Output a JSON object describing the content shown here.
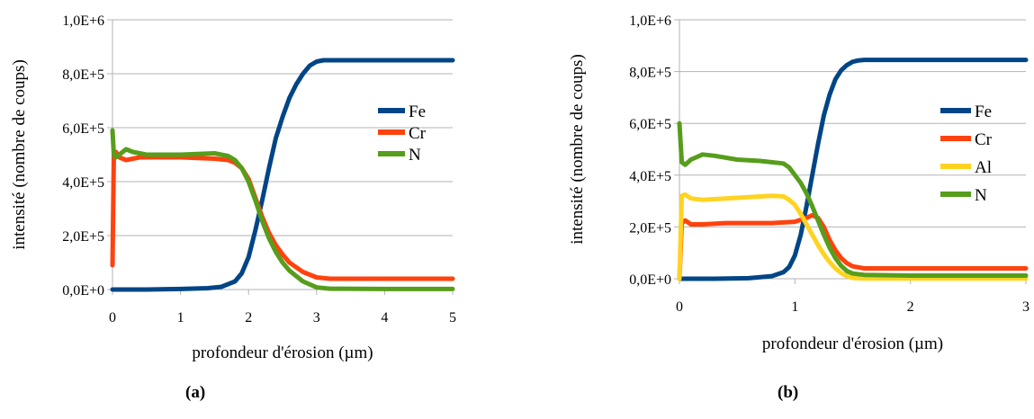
{
  "chart_data": [
    {
      "id": "a",
      "type": "line",
      "caption": "(a)",
      "xlabel": "profondeur d'érosion (µm)",
      "ylabel": "intensité (nombre de coups)",
      "xlim": [
        0,
        5
      ],
      "ylim": [
        0,
        1000000
      ],
      "xticks": [
        0,
        1,
        2,
        3,
        4,
        5
      ],
      "xtick_labels": [
        "0",
        "1",
        "2",
        "3",
        "4",
        "5"
      ],
      "yticks": [
        0,
        200000,
        400000,
        600000,
        800000,
        1000000
      ],
      "ytick_labels": [
        "0,0E+0",
        "2,0E+5",
        "4,0E+5",
        "6,0E+5",
        "8,0E+5",
        "1,0E+6"
      ],
      "grid": "horizontal",
      "legend_position": "right",
      "series": [
        {
          "name": "Fe",
          "color": "#004586",
          "x": [
            0,
            0.5,
            1.0,
            1.4,
            1.6,
            1.8,
            1.9,
            2.0,
            2.1,
            2.2,
            2.3,
            2.4,
            2.5,
            2.6,
            2.7,
            2.8,
            2.9,
            3.0,
            3.1,
            3.3,
            4.0,
            5.0
          ],
          "y": [
            0,
            0,
            2000,
            5000,
            10000,
            30000,
            60000,
            120000,
            220000,
            330000,
            450000,
            560000,
            640000,
            710000,
            760000,
            800000,
            830000,
            845000,
            850000,
            850000,
            850000,
            850000
          ]
        },
        {
          "name": "Cr",
          "color": "#ff420e",
          "x": [
            0,
            0.02,
            0.05,
            0.1,
            0.2,
            0.4,
            1.0,
            1.5,
            1.7,
            1.8,
            1.9,
            2.0,
            2.1,
            2.2,
            2.3,
            2.4,
            2.5,
            2.6,
            2.8,
            3.0,
            3.2,
            4.0,
            5.0
          ],
          "y": [
            90000,
            500000,
            510000,
            490000,
            480000,
            490000,
            490000,
            485000,
            480000,
            470000,
            450000,
            410000,
            340000,
            270000,
            210000,
            165000,
            130000,
            100000,
            65000,
            45000,
            40000,
            40000,
            40000
          ]
        },
        {
          "name": "N",
          "color": "#579d1c",
          "x": [
            0,
            0.02,
            0.05,
            0.1,
            0.2,
            0.3,
            0.5,
            1.0,
            1.5,
            1.7,
            1.8,
            1.9,
            2.0,
            2.1,
            2.2,
            2.3,
            2.4,
            2.5,
            2.6,
            2.8,
            3.0,
            3.2,
            4.0,
            5.0
          ],
          "y": [
            590000,
            500000,
            490000,
            500000,
            520000,
            510000,
            500000,
            500000,
            505000,
            495000,
            480000,
            450000,
            400000,
            330000,
            255000,
            190000,
            140000,
            100000,
            70000,
            30000,
            8000,
            3000,
            2000,
            2000
          ]
        }
      ]
    },
    {
      "id": "b",
      "type": "line",
      "caption": "(b)",
      "xlabel": "profondeur d'érosion (µm)",
      "ylabel": "intensité (nombre de coups)",
      "xlim": [
        0,
        3
      ],
      "ylim": [
        0,
        1000000
      ],
      "xticks": [
        0,
        1,
        2,
        3
      ],
      "xtick_labels": [
        "0",
        "1",
        "2",
        "3"
      ],
      "yticks": [
        0,
        200000,
        400000,
        600000,
        800000,
        1000000
      ],
      "ytick_labels": [
        "0,0E+0",
        "2,0E+5",
        "4,0E+5",
        "6,0E+5",
        "8,0E+5",
        "1,0E+6"
      ],
      "grid": "horizontal",
      "legend_position": "right",
      "series": [
        {
          "name": "Fe",
          "color": "#004586",
          "x": [
            0,
            0.3,
            0.6,
            0.8,
            0.9,
            0.95,
            1.0,
            1.05,
            1.1,
            1.15,
            1.2,
            1.25,
            1.3,
            1.35,
            1.4,
            1.45,
            1.5,
            1.55,
            1.6,
            1.7,
            2.0,
            3.0
          ],
          "y": [
            0,
            0,
            2000,
            10000,
            25000,
            45000,
            90000,
            170000,
            280000,
            400000,
            520000,
            630000,
            710000,
            770000,
            805000,
            825000,
            838000,
            843000,
            845000,
            845000,
            845000,
            845000
          ]
        },
        {
          "name": "Cr",
          "color": "#ff420e",
          "x": [
            0,
            0.02,
            0.05,
            0.1,
            0.2,
            0.4,
            0.6,
            0.8,
            1.0,
            1.1,
            1.15,
            1.2,
            1.25,
            1.3,
            1.35,
            1.4,
            1.45,
            1.5,
            1.6,
            1.8,
            2.0,
            3.0
          ],
          "y": [
            0,
            215000,
            225000,
            210000,
            210000,
            215000,
            215000,
            215000,
            220000,
            235000,
            245000,
            235000,
            200000,
            150000,
            110000,
            80000,
            60000,
            48000,
            40000,
            40000,
            40000,
            40000
          ]
        },
        {
          "name": "Al",
          "color": "#ffd320",
          "x": [
            0,
            0.02,
            0.05,
            0.1,
            0.2,
            0.4,
            0.6,
            0.8,
            0.9,
            0.95,
            1.0,
            1.05,
            1.1,
            1.15,
            1.2,
            1.25,
            1.3,
            1.35,
            1.4,
            1.45,
            1.5,
            1.6,
            2.0,
            3.0
          ],
          "y": [
            0,
            320000,
            325000,
            310000,
            305000,
            310000,
            315000,
            320000,
            318000,
            305000,
            285000,
            250000,
            210000,
            170000,
            130000,
            95000,
            65000,
            40000,
            22000,
            10000,
            3000,
            1000,
            1000,
            1000
          ]
        },
        {
          "name": "N",
          "color": "#579d1c",
          "x": [
            0,
            0.02,
            0.05,
            0.1,
            0.2,
            0.3,
            0.5,
            0.7,
            0.9,
            0.95,
            1.0,
            1.05,
            1.1,
            1.15,
            1.2,
            1.25,
            1.3,
            1.35,
            1.4,
            1.45,
            1.5,
            1.6,
            2.0,
            3.0
          ],
          "y": [
            600000,
            450000,
            440000,
            460000,
            480000,
            475000,
            460000,
            455000,
            445000,
            430000,
            400000,
            370000,
            330000,
            280000,
            225000,
            170000,
            120000,
            80000,
            50000,
            30000,
            20000,
            15000,
            12000,
            12000
          ]
        }
      ]
    }
  ]
}
